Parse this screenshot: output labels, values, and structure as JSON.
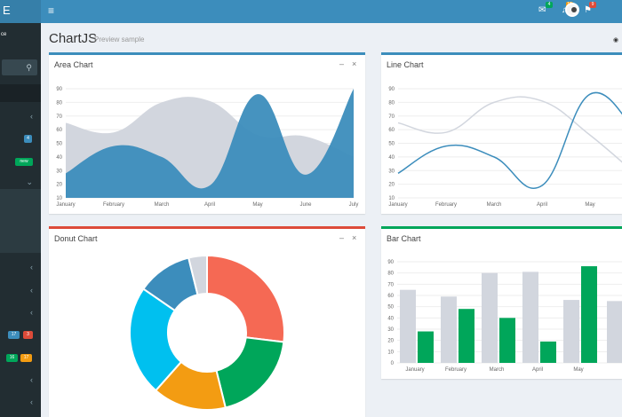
{
  "logo_fragment": "E",
  "user_fragment": "ce",
  "navbar": {
    "badges": [
      {
        "text": "4",
        "color": "#00a65a"
      },
      {
        "text": "10",
        "color": "#f39c12"
      },
      {
        "text": "9",
        "color": "#dd4b39"
      }
    ]
  },
  "sidebar": {
    "badges": [
      {
        "text": "4",
        "color": "#3c8dbc"
      },
      {
        "text": "new",
        "color": "#00a65a"
      },
      {
        "text": "17",
        "color": "#3c8dbc"
      },
      {
        "text": "3",
        "color": "#dd4b39"
      },
      {
        "text": "16",
        "color": "#00a65a"
      },
      {
        "text": "17",
        "color": "#f39c12"
      }
    ]
  },
  "page": {
    "title": "ChartJS",
    "subtitle": "Preview sample"
  },
  "boxes": {
    "area": {
      "title": "Area Chart",
      "border": "#3c8dbc"
    },
    "line": {
      "title": "Line Chart",
      "border": "#3c8dbc"
    },
    "donut": {
      "title": "Donut Chart",
      "border": "#dd4b39"
    },
    "bar": {
      "title": "Bar Chart",
      "border": "#00a65a"
    }
  },
  "chart_data": [
    {
      "type": "area",
      "title": "Area Chart",
      "categories": [
        "January",
        "February",
        "March",
        "April",
        "May",
        "June",
        "July"
      ],
      "ylim": [
        10,
        90
      ],
      "yticks": [
        10,
        20,
        30,
        40,
        50,
        60,
        70,
        80,
        90
      ],
      "series": [
        {
          "values": [
            65,
            58,
            80,
            81,
            56,
            55,
            40
          ],
          "color": "#d2d6de"
        },
        {
          "values": [
            28,
            48,
            40,
            19,
            86,
            27,
            90
          ],
          "color": "#3c8dbc"
        }
      ],
      "grid": true
    },
    {
      "type": "line",
      "title": "Line Chart",
      "categories": [
        "January",
        "February",
        "March",
        "April",
        "May"
      ],
      "ylim": [
        10,
        90
      ],
      "yticks": [
        10,
        20,
        30,
        40,
        50,
        60,
        70,
        80,
        90
      ],
      "series": [
        {
          "values": [
            65,
            58,
            80,
            81,
            56
          ],
          "color": "#d2d6de"
        },
        {
          "values": [
            28,
            48,
            40,
            19,
            86
          ],
          "color": "#3c8dbc"
        }
      ],
      "grid": true
    },
    {
      "type": "pie",
      "title": "Donut Chart",
      "slices": [
        {
          "value": 700,
          "color": "#f56954"
        },
        {
          "value": 500,
          "color": "#00a65a"
        },
        {
          "value": 400,
          "color": "#f39c12"
        },
        {
          "value": 600,
          "color": "#00c0ef"
        },
        {
          "value": 300,
          "color": "#3c8dbc"
        },
        {
          "value": 100,
          "color": "#d2d6de"
        }
      ]
    },
    {
      "type": "bar",
      "title": "Bar Chart",
      "categories": [
        "January",
        "February",
        "March",
        "April",
        "May"
      ],
      "ylim": [
        0,
        90
      ],
      "yticks": [
        0,
        10,
        20,
        30,
        40,
        50,
        60,
        70,
        80,
        90
      ],
      "series": [
        {
          "values": [
            65,
            59,
            80,
            81,
            56
          ],
          "color": "#d2d6de"
        },
        {
          "values": [
            28,
            48,
            40,
            19,
            86
          ],
          "color": "#00a65a"
        }
      ],
      "grid": true
    }
  ]
}
